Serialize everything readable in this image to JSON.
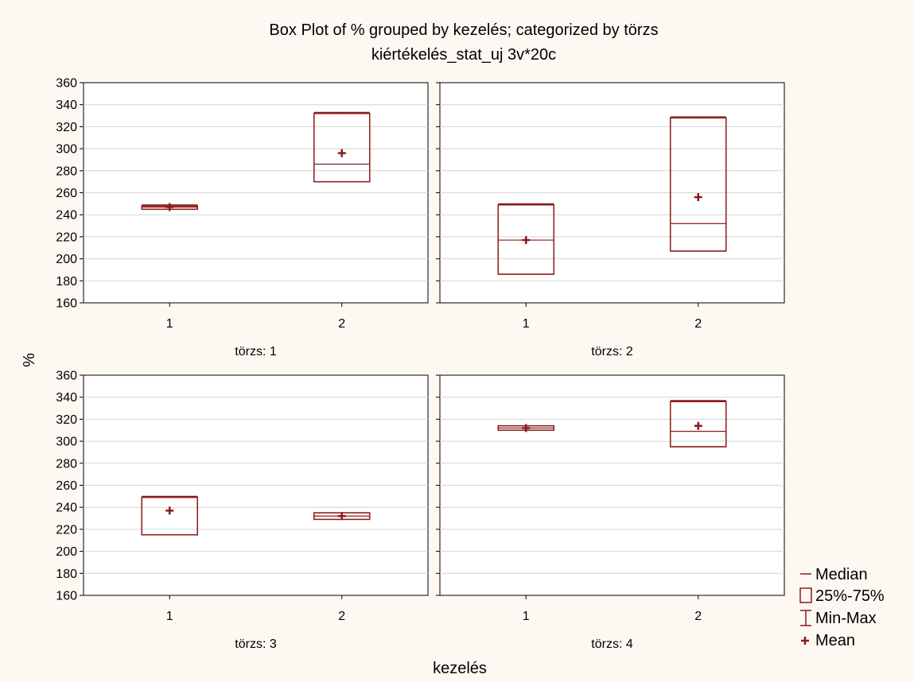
{
  "chart_data": {
    "type": "box",
    "title": "Box Plot of % grouped by  kezelés; categorized by törzs",
    "subtitle": "kiértékelés_stat_uj 3v*20c",
    "xlabel": "kezelés",
    "ylabel": "%",
    "ylim": [
      160,
      360
    ],
    "yticks": [
      160,
      180,
      200,
      220,
      240,
      260,
      280,
      300,
      320,
      340,
      360
    ],
    "categories": [
      "1",
      "2"
    ],
    "grid": true,
    "legend_position": "bottom-right",
    "box_color": "#8b1a1a",
    "legend": {
      "median": "Median",
      "box": "25%-75%",
      "whisker": "Min-Max",
      "mean": "Mean"
    },
    "panels": [
      {
        "label": "törzs: 1",
        "boxes": [
          {
            "category": "1",
            "min": 245,
            "q1": 245,
            "median": 247,
            "q3": 248,
            "max": 249,
            "mean": 247
          },
          {
            "category": "2",
            "min": 270,
            "q1": 270,
            "median": 286,
            "q3": 332,
            "max": 333,
            "mean": 296
          }
        ]
      },
      {
        "label": "törzs: 2",
        "boxes": [
          {
            "category": "1",
            "min": 186,
            "q1": 186,
            "median": 217,
            "q3": 249,
            "max": 250,
            "mean": 217
          },
          {
            "category": "2",
            "min": 207,
            "q1": 207,
            "median": 232,
            "q3": 328,
            "max": 329,
            "mean": 256
          }
        ]
      },
      {
        "label": "törzs: 3",
        "boxes": [
          {
            "category": "1",
            "min": 215,
            "q1": 215,
            "median": 249,
            "q3": 249,
            "max": 250,
            "mean": 237
          },
          {
            "category": "2",
            "min": 229,
            "q1": 229,
            "median": 232,
            "q3": 235,
            "max": 235,
            "mean": 232
          }
        ]
      },
      {
        "label": "törzs: 4",
        "boxes": [
          {
            "category": "1",
            "min": 310,
            "q1": 310,
            "median": 312,
            "q3": 314,
            "max": 314,
            "mean": 312
          },
          {
            "category": "2",
            "min": 295,
            "q1": 295,
            "median": 309,
            "q3": 336,
            "max": 337,
            "mean": 314
          }
        ]
      }
    ]
  }
}
